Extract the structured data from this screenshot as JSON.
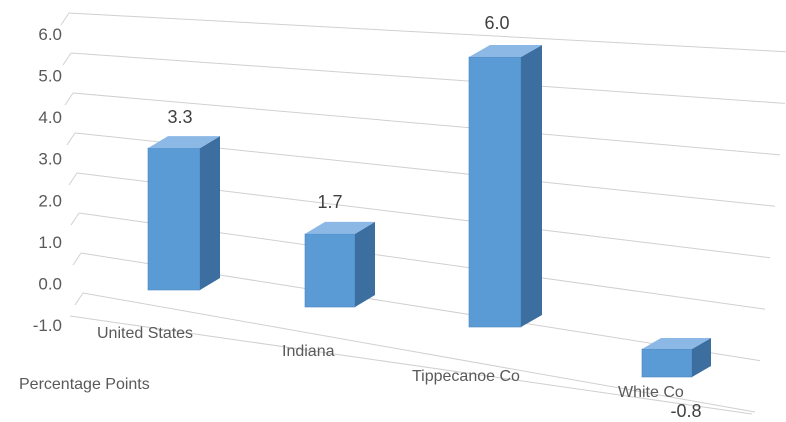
{
  "chart_data": {
    "type": "bar",
    "style": "3d-column",
    "categories": [
      "United States",
      "Indiana",
      "Tippecanoe Co",
      "White Co"
    ],
    "values": [
      3.3,
      1.7,
      6.0,
      -0.8
    ],
    "data_labels": [
      "3.3",
      "1.7",
      "6.0",
      "-0.8"
    ],
    "yticks": [
      "-1.0",
      "0.0",
      "1.0",
      "2.0",
      "3.0",
      "4.0",
      "5.0",
      "6.0"
    ],
    "ylim": [
      -1,
      6
    ],
    "ylabel": "Percentage Points",
    "title": "",
    "xlabel": "",
    "grid": true,
    "legend": "none",
    "colors": {
      "front": "#5b9bd5",
      "side": "#3c6e9f",
      "top": "#8cb8e6",
      "grid": "#d0d0d0",
      "text": "#595959"
    }
  }
}
